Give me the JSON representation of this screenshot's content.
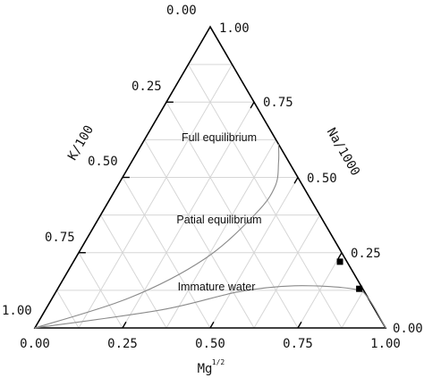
{
  "chart_data": {
    "type": "scatter",
    "subtype": "ternary (Giggenbach Na-K-Mg diagram)",
    "axes": {
      "bottom": {
        "label": "Mg",
        "label_superscript": "1/2",
        "ticks": [
          "0.00",
          "0.25",
          "0.50",
          "0.75",
          "1.00"
        ]
      },
      "left": {
        "label": "K/100",
        "ticks": [
          "0.00",
          "0.25",
          "0.50",
          "0.75",
          "1.00"
        ]
      },
      "right": {
        "label": "Na/1000",
        "ticks": [
          "1.00",
          "0.75",
          "0.50",
          "0.25",
          "0.00"
        ]
      }
    },
    "grid": true,
    "grid_step": 0.125,
    "regions": [
      {
        "name": "Full equilibrium"
      },
      {
        "name": "Patial equilibrium"
      },
      {
        "name": "Immature water"
      }
    ],
    "curves": [
      {
        "boundary": "full/partial equilibrium",
        "points": [
          {
            "na": 0.0,
            "k": 1.0,
            "mg": 0.0
          },
          {
            "na": 0.1,
            "k": 0.68,
            "mg": 0.22
          },
          {
            "na": 0.23,
            "k": 0.4,
            "mg": 0.37
          },
          {
            "na": 0.38,
            "k": 0.18,
            "mg": 0.44
          },
          {
            "na": 0.47,
            "k": 0.08,
            "mg": 0.45
          },
          {
            "na": 0.55,
            "k": 0.03,
            "mg": 0.42
          },
          {
            "na": 0.61,
            "k": 0.0,
            "mg": 0.39
          }
        ]
      },
      {
        "boundary": "partial equilibrium/immature water",
        "points": [
          {
            "na": 0.0,
            "k": 1.0,
            "mg": 0.0
          },
          {
            "na": 0.06,
            "k": 0.61,
            "mg": 0.33
          },
          {
            "na": 0.12,
            "k": 0.36,
            "mg": 0.52
          },
          {
            "na": 0.14,
            "k": 0.19,
            "mg": 0.67
          },
          {
            "na": 0.13,
            "k": 0.03,
            "mg": 0.84
          },
          {
            "na": 0.1,
            "k": 0.0,
            "mg": 0.9
          },
          {
            "na": 0.0,
            "k": 0.0,
            "mg": 1.0
          }
        ]
      }
    ],
    "series": [
      {
        "marker": "square",
        "points": [
          {
            "na": 0.22,
            "k": 0.02,
            "mg": 0.76
          },
          {
            "na": 0.13,
            "k": 0.01,
            "mg": 0.86
          }
        ]
      }
    ]
  }
}
